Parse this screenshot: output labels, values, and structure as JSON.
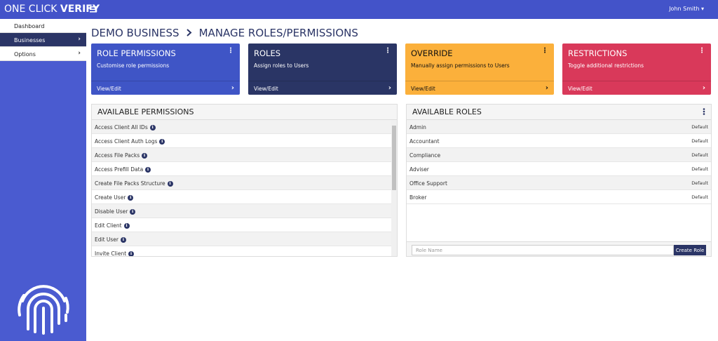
{
  "header": {
    "brand_light": "ONE CLICK",
    "brand_bold": "VERIFY",
    "user": "John Smith"
  },
  "sidebar": {
    "items": [
      "Dashboard",
      "Businesses",
      "Options"
    ]
  },
  "breadcrumb": [
    "DEMO BUSINESS",
    "MANAGE ROLES/PERMISSIONS"
  ],
  "cards": [
    {
      "title": "ROLE PERMISSIONS",
      "description": "Customise role permissions",
      "link": "View/Edit"
    },
    {
      "title": "ROLES",
      "description": "Assign roles to Users",
      "link": "View/Edit"
    },
    {
      "title": "OVERRIDE",
      "description": "Manually assign permissions to Users",
      "link": "View/Edit"
    },
    {
      "title": "RESTRICTIONS",
      "description": "Toggle additional restrictions",
      "link": "View/Edit"
    }
  ],
  "permissions": {
    "title": "AVAILABLE PERMISSIONS",
    "items": [
      "Access Client All IDs",
      "Access Client Auth Logs",
      "Access File Packs",
      "Access Prefill Data",
      "Create File Packs Structure",
      "Create User",
      "Disable User",
      "Edit Client",
      "Edit User",
      "Invite Client"
    ]
  },
  "roles": {
    "title": "AVAILABLE ROLES",
    "items": [
      {
        "name": "Admin",
        "tag": "Default"
      },
      {
        "name": "Accountant",
        "tag": "Default"
      },
      {
        "name": "Compliance",
        "tag": "Default"
      },
      {
        "name": "Adviser",
        "tag": "Default"
      },
      {
        "name": "Office Support",
        "tag": "Default"
      },
      {
        "name": "Broker",
        "tag": "Default"
      }
    ],
    "input_placeholder": "Role Name",
    "button": "Create Role"
  }
}
